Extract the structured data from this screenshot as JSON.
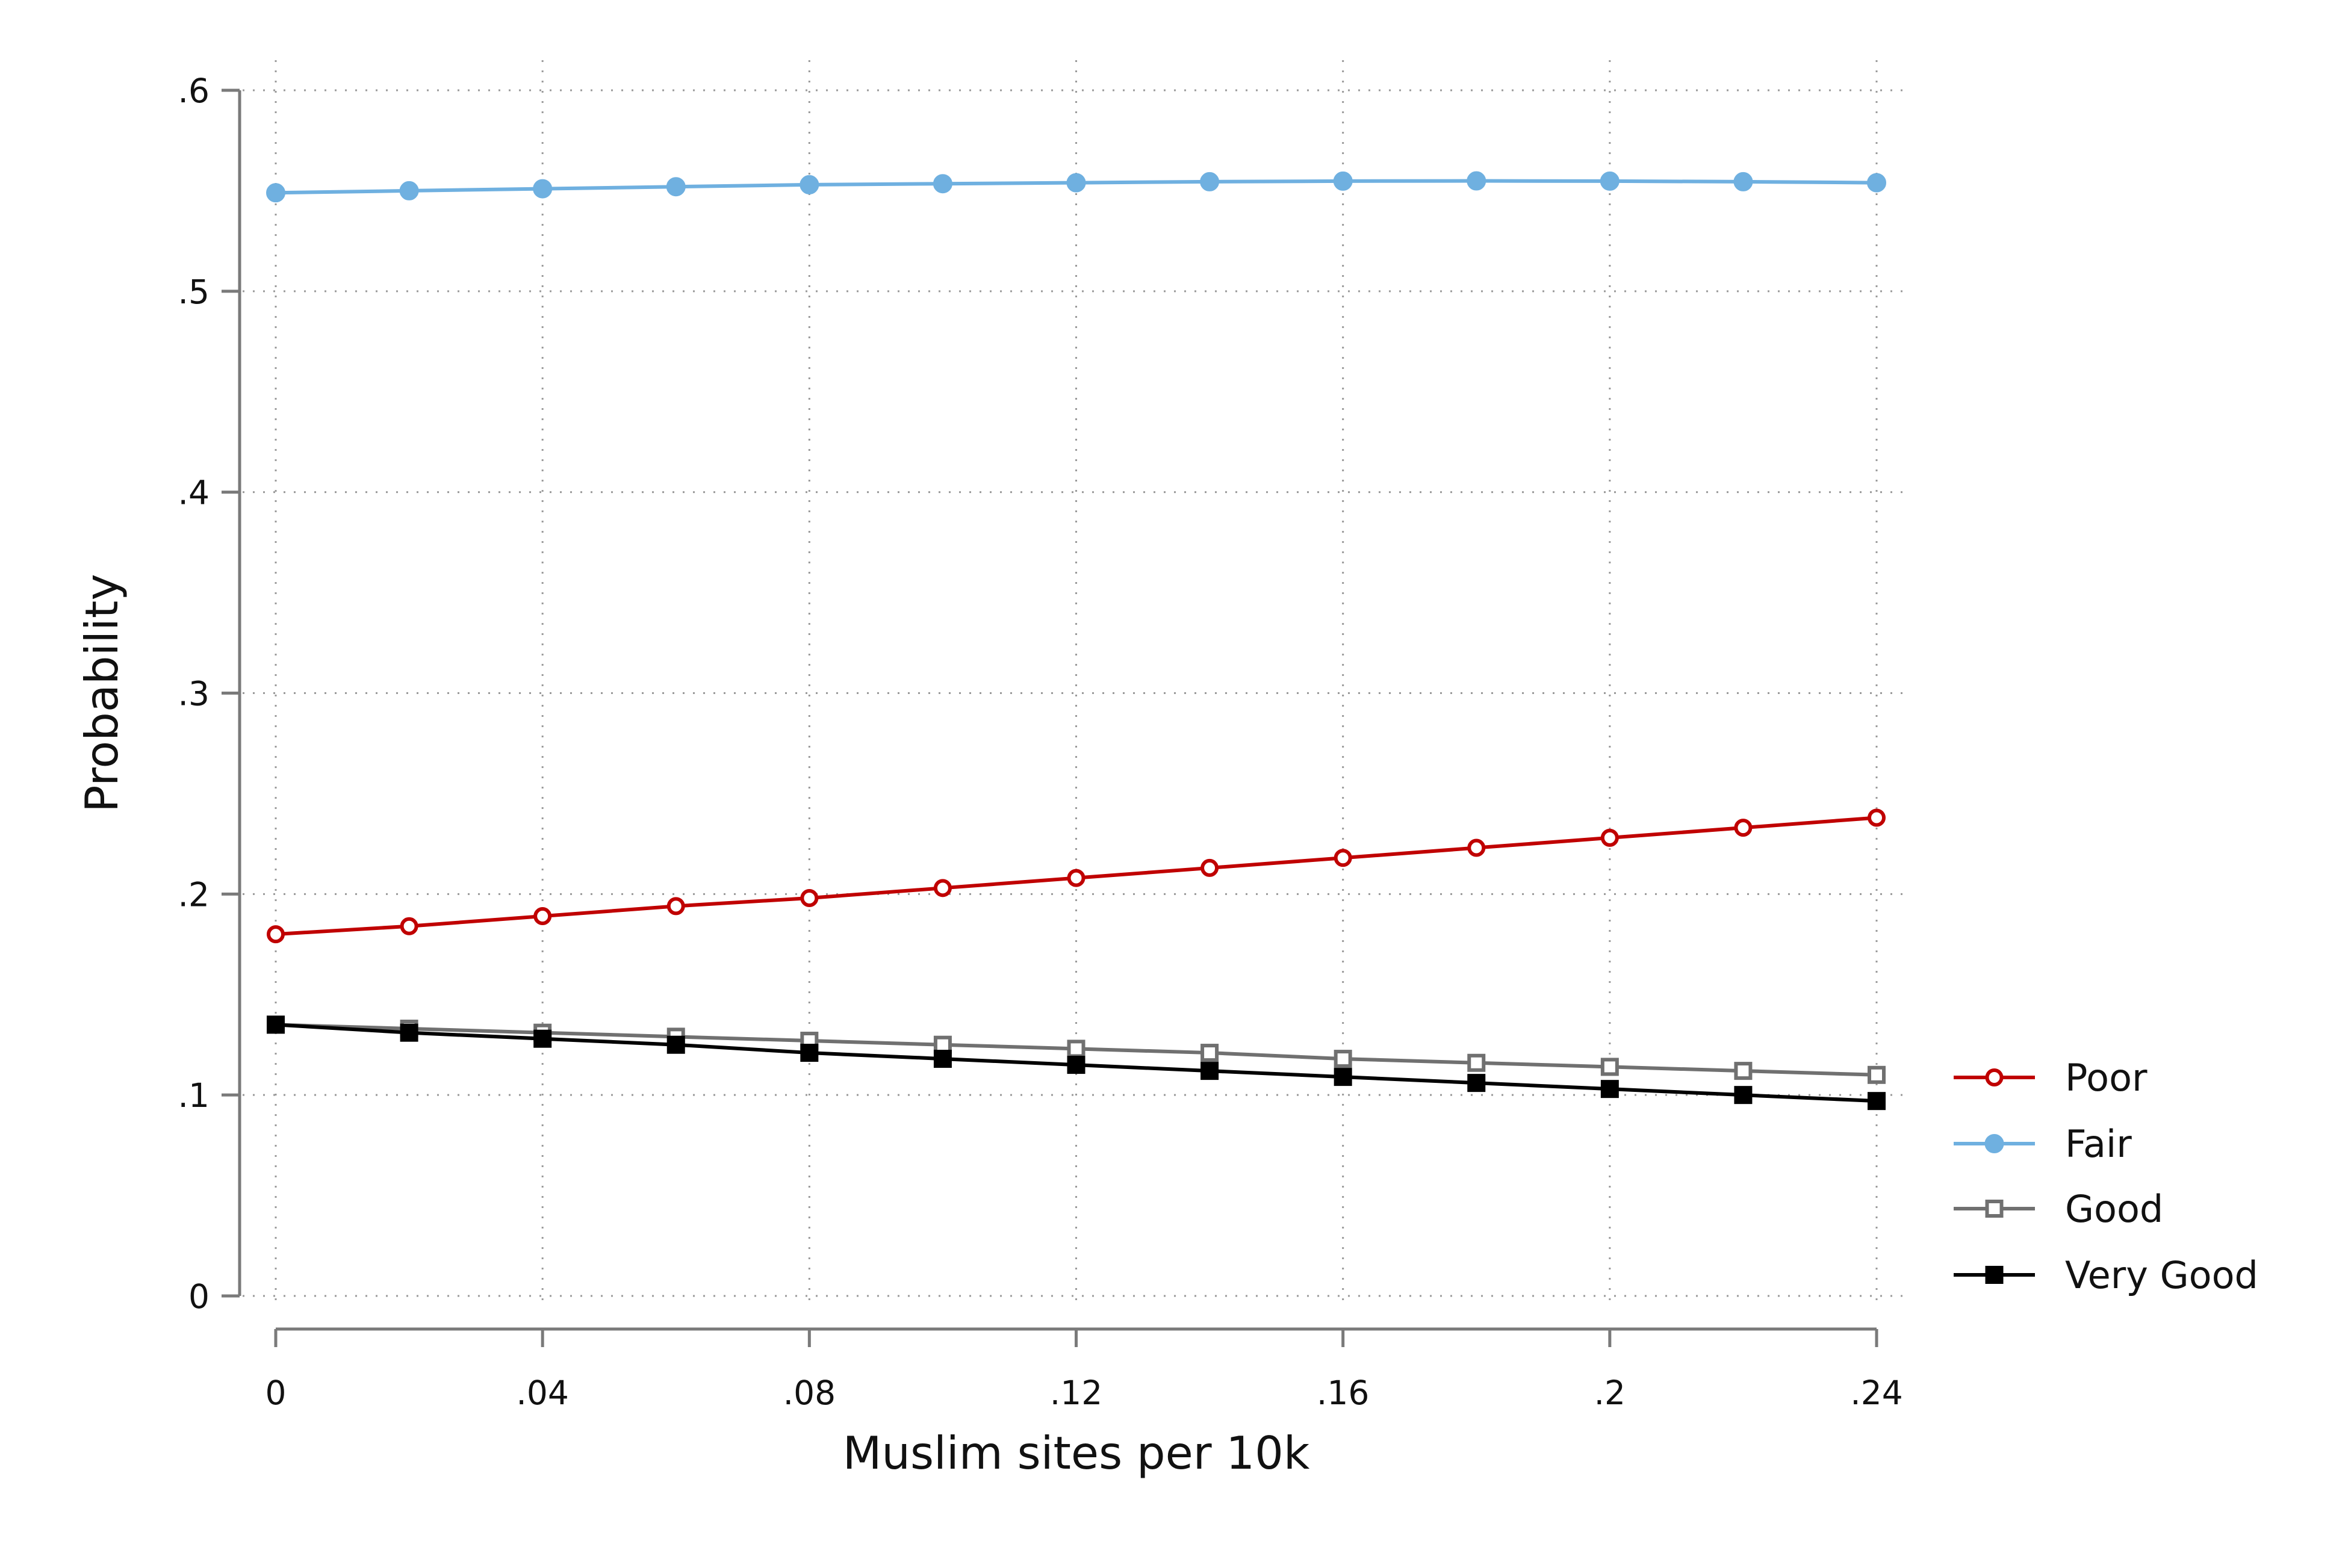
{
  "chart_data": {
    "type": "line",
    "title": "",
    "xlabel": "Muslim sites per 10k",
    "ylabel": "Probability",
    "xlim": [
      0,
      0.24
    ],
    "ylim": [
      0,
      0.6
    ],
    "x_ticks": [
      0,
      0.04,
      0.08,
      0.12,
      0.16,
      0.2,
      0.24
    ],
    "x_tick_labels": [
      "0",
      ".04",
      ".08",
      ".12",
      ".16",
      ".2",
      ".24"
    ],
    "y_ticks": [
      0,
      0.1,
      0.2,
      0.3,
      0.4,
      0.5,
      0.6
    ],
    "y_tick_labels": [
      "0",
      ".1",
      ".2",
      ".3",
      ".4",
      ".5",
      ".6"
    ],
    "grid": true,
    "legend_position": "right",
    "x": [
      0,
      0.02,
      0.04,
      0.06,
      0.08,
      0.1,
      0.12,
      0.14,
      0.16,
      0.18,
      0.2,
      0.22,
      0.24
    ],
    "series": [
      {
        "name": "Poor",
        "color": "#c00000",
        "marker": "hollow-circle",
        "values": [
          0.18,
          0.184,
          0.189,
          0.194,
          0.198,
          0.203,
          0.208,
          0.213,
          0.218,
          0.223,
          0.228,
          0.233,
          0.238
        ]
      },
      {
        "name": "Fair",
        "color": "#6fb0e0",
        "marker": "filled-circle",
        "values": [
          0.549,
          0.55,
          0.551,
          0.552,
          0.553,
          0.5535,
          0.554,
          0.5545,
          0.5548,
          0.5549,
          0.5548,
          0.5545,
          0.554
        ]
      },
      {
        "name": "Good",
        "color": "#707070",
        "marker": "hollow-square",
        "values": [
          0.135,
          0.133,
          0.131,
          0.129,
          0.127,
          0.125,
          0.123,
          0.121,
          0.118,
          0.116,
          0.114,
          0.112,
          0.11
        ]
      },
      {
        "name": "Very Good",
        "color": "#000000",
        "marker": "filled-square",
        "values": [
          0.135,
          0.131,
          0.128,
          0.125,
          0.121,
          0.118,
          0.115,
          0.112,
          0.109,
          0.106,
          0.103,
          0.1,
          0.097
        ]
      }
    ]
  }
}
